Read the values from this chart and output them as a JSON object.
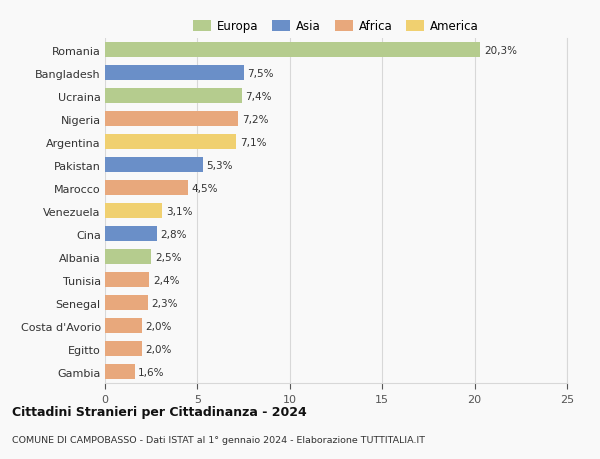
{
  "categories": [
    "Romania",
    "Bangladesh",
    "Ucraina",
    "Nigeria",
    "Argentina",
    "Pakistan",
    "Marocco",
    "Venezuela",
    "Cina",
    "Albania",
    "Tunisia",
    "Senegal",
    "Costa d'Avorio",
    "Egitto",
    "Gambia"
  ],
  "values": [
    20.3,
    7.5,
    7.4,
    7.2,
    7.1,
    5.3,
    4.5,
    3.1,
    2.8,
    2.5,
    2.4,
    2.3,
    2.0,
    2.0,
    1.6
  ],
  "colors": [
    "#b5cc8e",
    "#6a8fc8",
    "#b5cc8e",
    "#e8a87c",
    "#f0d070",
    "#6a8fc8",
    "#e8a87c",
    "#f0d070",
    "#6a8fc8",
    "#b5cc8e",
    "#e8a87c",
    "#e8a87c",
    "#e8a87c",
    "#e8a87c",
    "#e8a87c"
  ],
  "labels": [
    "20,3%",
    "7,5%",
    "7,4%",
    "7,2%",
    "7,1%",
    "5,3%",
    "4,5%",
    "3,1%",
    "2,8%",
    "2,5%",
    "2,4%",
    "2,3%",
    "2,0%",
    "2,0%",
    "1,6%"
  ],
  "legend": [
    {
      "label": "Europa",
      "color": "#b5cc8e"
    },
    {
      "label": "Asia",
      "color": "#6a8fc8"
    },
    {
      "label": "Africa",
      "color": "#e8a87c"
    },
    {
      "label": "America",
      "color": "#f0d070"
    }
  ],
  "xlim": [
    0,
    25
  ],
  "xticks": [
    0,
    5,
    10,
    15,
    20,
    25
  ],
  "title": "Cittadini Stranieri per Cittadinanza - 2024",
  "subtitle": "COMUNE DI CAMPOBASSO - Dati ISTAT al 1° gennaio 2024 - Elaborazione TUTTITALIA.IT",
  "background_color": "#f9f9f9",
  "grid_color": "#d8d8d8"
}
